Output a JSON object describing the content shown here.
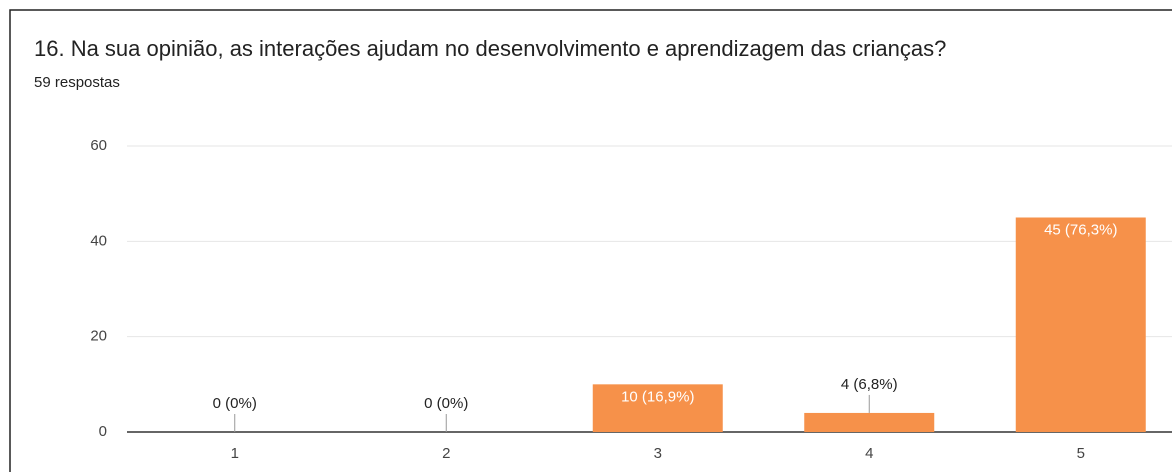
{
  "chart_data": {
    "type": "bar",
    "title": "16. Na sua opinião, as interações ajudam no desenvolvimento e aprendizagem das crianças?",
    "subtitle": "59 respostas",
    "categories": [
      "1",
      "2",
      "3",
      "4",
      "5"
    ],
    "values": [
      0,
      0,
      10,
      4,
      45
    ],
    "value_labels": [
      "0 (0%)",
      "0 (0%)",
      "10 (16,9%)",
      "4 (6,8%)",
      "45 (76,3%)"
    ],
    "color": "#f6914a",
    "ylim": [
      0,
      60
    ],
    "yticks": [
      0,
      20,
      40,
      60
    ],
    "grid": true
  }
}
